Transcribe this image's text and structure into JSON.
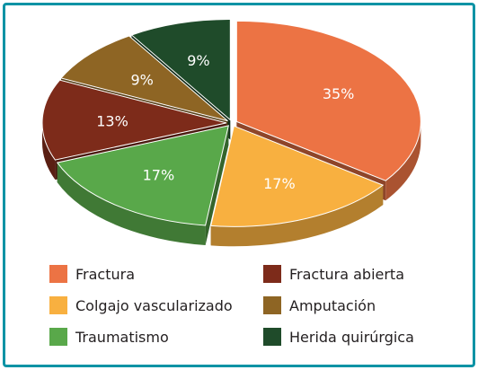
{
  "chart_data": {
    "type": "pie",
    "title": "",
    "legend_position": "bottom",
    "slices": [
      {
        "label": "Fractura",
        "value": 35,
        "display": "35%",
        "color": "#ec7344"
      },
      {
        "label": "Colgajo vascularizado",
        "value": 17,
        "display": "17%",
        "color": "#f8b040"
      },
      {
        "label": "Traumatismo",
        "value": 17,
        "display": "17%",
        "color": "#59a84a"
      },
      {
        "label": "Fractura abierta",
        "value": 13,
        "display": "13%",
        "color": "#7d2b1a"
      },
      {
        "label": "Amputación",
        "value": 9,
        "display": "9%",
        "color": "#8e6524"
      },
      {
        "label": "Herida quirúrgica",
        "value": 9,
        "display": "9%",
        "color": "#1f4b2a"
      }
    ],
    "legend": [
      {
        "label": "Fractura",
        "color": "#ec7344"
      },
      {
        "label": "Fractura abierta",
        "color": "#7d2b1a"
      },
      {
        "label": "Colgajo vascularizado",
        "color": "#f8b040"
      },
      {
        "label": "Amputación",
        "color": "#8e6524"
      },
      {
        "label": "Traumatismo",
        "color": "#59a84a"
      },
      {
        "label": "Herida quirúrgica",
        "color": "#1f4b2a"
      }
    ]
  }
}
